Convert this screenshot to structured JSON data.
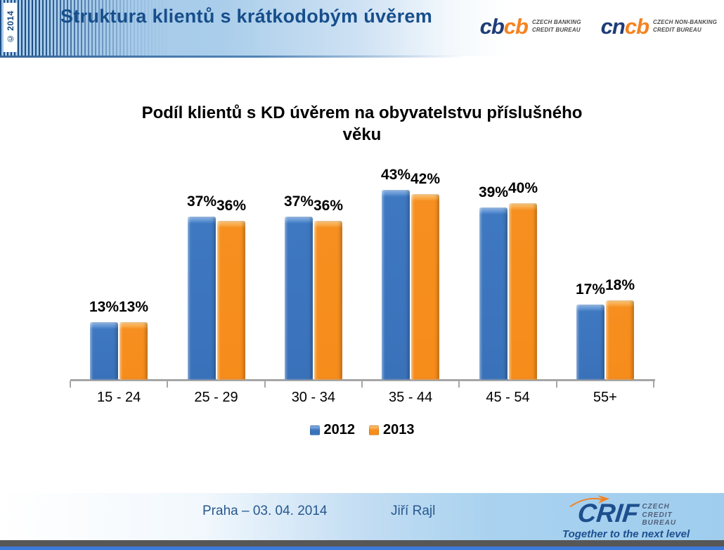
{
  "copyright": "© 2014",
  "header": {
    "title": "Struktura klientů s krátkodobým úvěrem"
  },
  "logos": {
    "cbcb": {
      "part1": "cb",
      "part2": "cb",
      "caption_line1": "CZECH BANKING",
      "caption_line2": "CREDIT BUREAU"
    },
    "cncb": {
      "part1": "cn",
      "part2": "cb",
      "caption_line1": "CZECH NON-BANKING",
      "caption_line2": "CREDIT BUREAU"
    }
  },
  "chart_data": {
    "type": "bar",
    "title": "Podíl klientů s KD úvěrem na obyvatelstvu příslušného věku",
    "categories": [
      "15 - 24",
      "25 - 29",
      "30 - 34",
      "35 - 44",
      "45 - 54",
      "55+"
    ],
    "series": [
      {
        "name": "2012",
        "color": "#3a72ba",
        "values": [
          13,
          37,
          37,
          43,
          39,
          17
        ]
      },
      {
        "name": "2013",
        "color": "#f68c1a",
        "values": [
          13,
          36,
          36,
          42,
          40,
          18
        ]
      }
    ],
    "value_suffix": "%",
    "xlabel": "",
    "ylabel": "",
    "ylim": [
      0,
      50
    ],
    "grid": false,
    "legend_position": "bottom",
    "data_labels": true
  },
  "footer": {
    "place_date": "Praha – 03. 04. 2014",
    "author": "Jiří Rajl",
    "crif": {
      "name": "CRIF",
      "caption1": "CZECH",
      "caption2": "CREDIT",
      "caption3": "BUREAU",
      "tagline": "Together to the next level"
    }
  }
}
